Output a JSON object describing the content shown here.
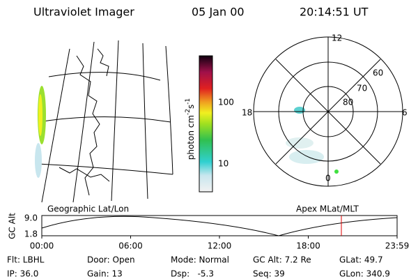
{
  "header": {
    "instrument": "Ultraviolet Imager",
    "date": "05 Jan 00",
    "time": "20:14:51 UT"
  },
  "colorbar": {
    "label": {
      "base": "photon cm",
      "exp1": "-2",
      "unit2": "s",
      "exp2": "-1"
    },
    "ticks": [
      "100",
      "10"
    ]
  },
  "map": {
    "caption": "Geographic Lat/Lon"
  },
  "polar": {
    "caption": "Apex MLat/MLT",
    "mlt_labels": [
      "12",
      "18",
      "6",
      "0"
    ],
    "lat_labels": [
      "60",
      "70",
      "80"
    ]
  },
  "altitude_plot": {
    "axis_label": "GC Alt",
    "y_labels": [
      "9.0",
      "1.8"
    ],
    "x_labels": [
      "00:00",
      "06:00",
      "12:00",
      "18:00",
      "23:59"
    ]
  },
  "info": {
    "rows": [
      [
        "Flt: LBHL",
        "Door: Open",
        "Mode: Normal",
        "GC Alt: 7.2 Re",
        "GLat: 49.7"
      ],
      [
        "IP: 36.0",
        "Gain: 13",
        "Dsp:   -5.3",
        "Seq: 39",
        "GLon: 340.9"
      ]
    ]
  }
}
